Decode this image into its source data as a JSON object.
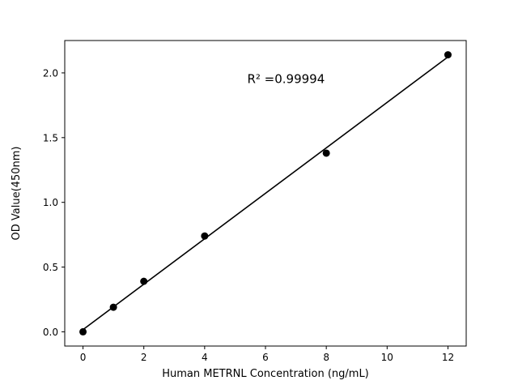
{
  "figure": {
    "background": "#ffffff"
  },
  "chart_data": {
    "type": "scatter",
    "title": "",
    "xlabel": "Human METRNL Concentration (ng/mL)",
    "ylabel": "OD Value(450nm)",
    "x": [
      0,
      1,
      2,
      4,
      8,
      12
    ],
    "y": [
      0.0,
      0.19,
      0.39,
      0.74,
      1.38,
      2.14
    ],
    "fit_line": true,
    "annotation": "R² =0.99994",
    "xticks": [
      0,
      2,
      4,
      6,
      8,
      10,
      12
    ],
    "yticks": [
      0.0,
      0.5,
      1.0,
      1.5,
      2.0
    ],
    "xlim": [
      -0.6,
      12.6
    ],
    "ylim": [
      -0.11,
      2.25
    ],
    "grid": false,
    "legend": "none",
    "marker_color": "#000000",
    "line_color": "#000000",
    "axis_color": "#000000"
  }
}
